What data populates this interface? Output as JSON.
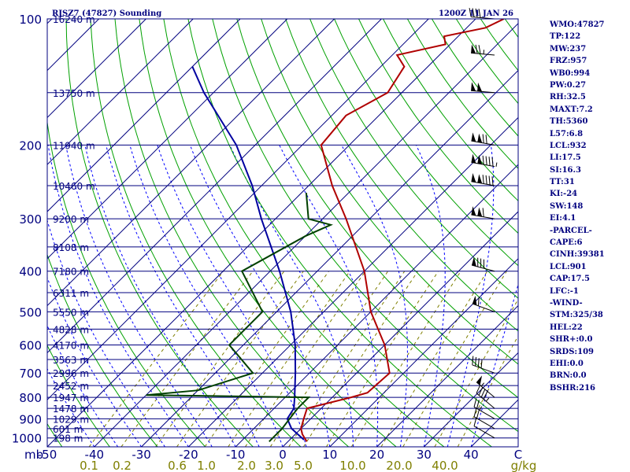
{
  "header": {
    "station": "RJSZ7 (47827) Sounding",
    "time": "1200Z 11 JAN 26"
  },
  "colors": {
    "frame": "#00007f",
    "isotherm": "#00007f",
    "dry_adiabat": "#00a000",
    "moist_adiabat": "#0000ff",
    "mixing_ratio": "#7f7f00",
    "temperature": "#b00000",
    "dewpoint": "#004000",
    "parcel": "#0000a0",
    "wind": "#000000"
  },
  "chart_data": {
    "type": "skew-t log-p sounding",
    "pressure_range_mb": [
      1050,
      100
    ],
    "temperature_range_c": [
      -50,
      50
    ],
    "pressure_tick_labels": [
      "100",
      "200",
      "300",
      "400",
      "500",
      "600",
      "700",
      "800",
      "900",
      "1000"
    ],
    "pressure_unit_label": "mb",
    "temperature_tick_labels": [
      "-50",
      "-40",
      "-30",
      "-20",
      "-10",
      "0",
      "10",
      "20",
      "30",
      "40",
      "C"
    ],
    "mixing_ratio_tick_labels": [
      "0.1",
      "0.2",
      "0.6",
      "1.0",
      "2.0",
      "3.0",
      "5.0",
      "10.0",
      "20.0",
      "40.0",
      "g/kg"
    ],
    "heights": [
      {
        "p": 100,
        "label": "16240 m"
      },
      {
        "p": 150,
        "label": "13750 m"
      },
      {
        "p": 200,
        "label": "11940 m"
      },
      {
        "p": 250,
        "label": "10460 m"
      },
      {
        "p": 300,
        "label": "9200 m"
      },
      {
        "p": 350,
        "label": "8108 m"
      },
      {
        "p": 400,
        "label": "7180 m"
      },
      {
        "p": 450,
        "label": "6311 m"
      },
      {
        "p": 500,
        "label": "5550 m"
      },
      {
        "p": 550,
        "label": "4828 m"
      },
      {
        "p": 600,
        "label": "4170 m"
      },
      {
        "p": 650,
        "label": "3563 m"
      },
      {
        "p": 700,
        "label": "2996 m"
      },
      {
        "p": 750,
        "label": "2452 m"
      },
      {
        "p": 800,
        "label": "1947 m"
      },
      {
        "p": 850,
        "label": "1478 m"
      },
      {
        "p": 900,
        "label": "1029 m"
      },
      {
        "p": 950,
        "label": "601 m"
      },
      {
        "p": 1000,
        "label": "198 m"
      }
    ],
    "temperature": [
      {
        "p": 1020,
        "t": 4.0
      },
      {
        "p": 980,
        "t": 1.5
      },
      {
        "p": 950,
        "t": 0.0
      },
      {
        "p": 900,
        "t": -1.5
      },
      {
        "p": 850,
        "t": -3.0
      },
      {
        "p": 800,
        "t": 4.0
      },
      {
        "p": 780,
        "t": 6.5
      },
      {
        "p": 700,
        "t": 7.0
      },
      {
        "p": 600,
        "t": 0.0
      },
      {
        "p": 500,
        "t": -10.0
      },
      {
        "p": 400,
        "t": -20.0
      },
      {
        "p": 300,
        "t": -35.0
      },
      {
        "p": 250,
        "t": -45.0
      },
      {
        "p": 200,
        "t": -56.0
      },
      {
        "p": 170,
        "t": -57.0
      },
      {
        "p": 150,
        "t": -53.0
      },
      {
        "p": 130,
        "t": -55.0
      },
      {
        "p": 122,
        "t": -59.0
      },
      {
        "p": 115,
        "t": -51.0
      },
      {
        "p": 110,
        "t": -53.0
      },
      {
        "p": 105,
        "t": -46.0
      },
      {
        "p": 100,
        "t": -44.0
      }
    ],
    "dewpoint": [
      {
        "p": 1020,
        "t": -4.0
      },
      {
        "p": 950,
        "t": -4.0
      },
      {
        "p": 900,
        "t": -4.5
      },
      {
        "p": 850,
        "t": -5.0
      },
      {
        "p": 800,
        "t": -5.0
      },
      {
        "p": 790,
        "t": -40.0
      },
      {
        "p": 770,
        "t": -30.0
      },
      {
        "p": 700,
        "t": -22.0
      },
      {
        "p": 600,
        "t": -33.0
      },
      {
        "p": 500,
        "t": -33.0
      },
      {
        "p": 400,
        "t": -46.0
      },
      {
        "p": 330,
        "t": -40.0
      },
      {
        "p": 310,
        "t": -37.0
      },
      {
        "p": 300,
        "t": -43.0
      },
      {
        "p": 260,
        "t": -49.0
      }
    ],
    "parcel": [
      {
        "p": 1010,
        "t": 3.0
      },
      {
        "p": 950,
        "t": -2.0
      },
      {
        "p": 900,
        "t": -5.0
      },
      {
        "p": 850,
        "t": -5.8
      },
      {
        "p": 800,
        "t": -8.0
      },
      {
        "p": 700,
        "t": -13.0
      },
      {
        "p": 600,
        "t": -19.0
      },
      {
        "p": 500,
        "t": -27.0
      },
      {
        "p": 400,
        "t": -38.0
      },
      {
        "p": 300,
        "t": -53.0
      },
      {
        "p": 250,
        "t": -62.0
      },
      {
        "p": 200,
        "t": -74.0
      },
      {
        "p": 150,
        "t": -92.0
      },
      {
        "p": 130,
        "t": -100.0
      }
    ],
    "winds": [
      {
        "p": 1000,
        "dir": 300,
        "kt": 10
      },
      {
        "p": 950,
        "dir": 300,
        "kt": 20
      },
      {
        "p": 900,
        "dir": 300,
        "kt": 25
      },
      {
        "p": 850,
        "dir": 310,
        "kt": 45
      },
      {
        "p": 800,
        "dir": 310,
        "kt": 55
      },
      {
        "p": 700,
        "dir": 290,
        "kt": 40
      },
      {
        "p": 500,
        "dir": 290,
        "kt": 60
      },
      {
        "p": 400,
        "dir": 285,
        "kt": 80
      },
      {
        "p": 300,
        "dir": 280,
        "kt": 110
      },
      {
        "p": 250,
        "dir": 280,
        "kt": 140
      },
      {
        "p": 225,
        "dir": 280,
        "kt": 145
      },
      {
        "p": 200,
        "dir": 280,
        "kt": 120
      },
      {
        "p": 150,
        "dir": 275,
        "kt": 100
      },
      {
        "p": 122,
        "dir": 275,
        "kt": 75
      },
      {
        "p": 100,
        "dir": 275,
        "kt": 40
      }
    ]
  },
  "indices": [
    "WMO:47827",
    "TP:122",
    "MW:237",
    "FRZ:957",
    "WB0:994",
    "PW:0.27",
    "RH:32.5",
    "MAXT:7.2",
    "TH:5360",
    "L57:6.8",
    "LCL:932",
    "LI:17.5",
    "SI:16.3",
    "TT:31",
    "KI:-24",
    "SW:148",
    "EI:4.1",
    "-PARCEL-",
    "CAPE:6",
    "CINH:39381",
    "LCL:901",
    "CAP:17.5",
    "LFC:-1",
    "-WIND-",
    "STM:325/38",
    "HEL:22",
    "SHR+:0.0",
    "SRDS:109",
    "EHI:0.0",
    "BRN:0.0",
    "BSHR:216"
  ]
}
